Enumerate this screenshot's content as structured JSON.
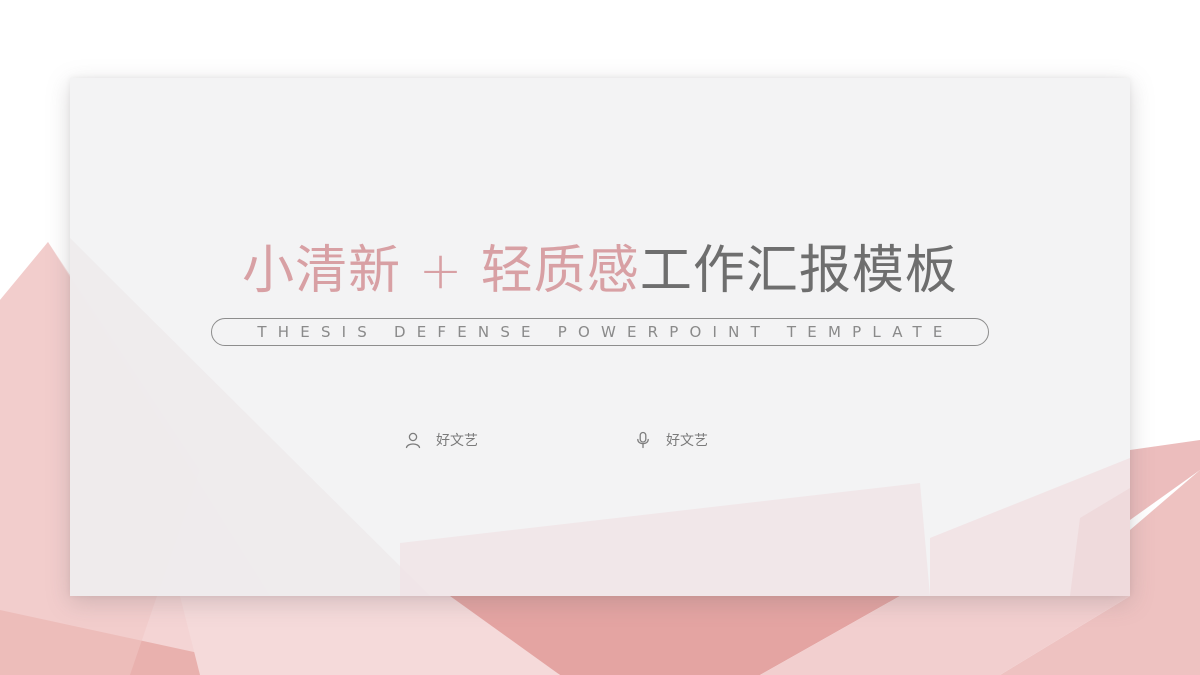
{
  "slide": {
    "title_pink": "小清新 + 轻质感",
    "title_gray": "工作汇报模板",
    "subtitle": "THESIS DEFENSE POWERPOINT TEMPLATE",
    "author": {
      "icon": "person-icon",
      "label": "好文艺"
    },
    "speaker": {
      "icon": "microphone-icon",
      "label": "好文艺"
    }
  },
  "colors": {
    "accent_pink": "#d8a0a4",
    "title_gray": "#6e6e6e",
    "card_background": "#f3f2f4",
    "shape_pink_light": "#f4d3d3",
    "shape_pink_mid": "#eab8b6",
    "shape_pink_dark": "#e3a3a1"
  }
}
